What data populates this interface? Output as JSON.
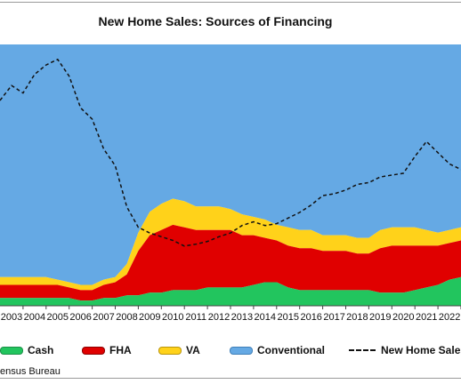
{
  "chart_data": {
    "type": "area",
    "title": "New Home Sales: Sources of Financing",
    "source_note": "ensus Bureau",
    "grid": false,
    "colors": {
      "Cash": "#22c55e",
      "FHA": "#e00000",
      "VA": "#ffd21a",
      "Conventional": "#65a9e4",
      "New Home Sales": "#111111"
    },
    "x_tick_labels": [
      "2003",
      "2004",
      "2005",
      "2006",
      "2007",
      "2008",
      "2009",
      "2010",
      "2011",
      "2012",
      "2013",
      "2014",
      "2015",
      "2016",
      "2017",
      "2018",
      "2019",
      "2020",
      "2021",
      "2022"
    ],
    "x": [
      2002.5,
      2003.0,
      2003.5,
      2004.0,
      2004.5,
      2005.0,
      2005.5,
      2006.0,
      2006.5,
      2007.0,
      2007.5,
      2008.0,
      2008.5,
      2009.0,
      2009.5,
      2010.0,
      2010.5,
      2011.0,
      2011.5,
      2012.0,
      2012.5,
      2013.0,
      2013.5,
      2014.0,
      2014.5,
      2015.0,
      2015.5,
      2016.0,
      2016.5,
      2017.0,
      2017.5,
      2018.0,
      2018.5,
      2019.0,
      2019.5,
      2020.0,
      2020.5,
      2021.0,
      2021.5,
      2022.0,
      2022.5
    ],
    "stack_shares_note": "cumulative percent of sales",
    "series": [
      {
        "name": "Cash",
        "values": [
          3,
          3,
          3,
          3,
          3,
          3,
          3,
          2,
          2,
          3,
          3,
          4,
          4,
          5,
          5,
          6,
          6,
          6,
          7,
          7,
          7,
          7,
          8,
          9,
          9,
          7,
          6,
          6,
          6,
          6,
          6,
          6,
          6,
          5,
          5,
          5,
          6,
          7,
          8,
          10,
          11
        ]
      },
      {
        "name": "FHA",
        "values": [
          5,
          5,
          5,
          5,
          5,
          5,
          4,
          4,
          4,
          5,
          6,
          8,
          17,
          22,
          24,
          25,
          24,
          23,
          22,
          22,
          22,
          20,
          19,
          17,
          16,
          16,
          16,
          16,
          15,
          15,
          15,
          14,
          14,
          17,
          18,
          18,
          17,
          16,
          15,
          14,
          14
        ]
      },
      {
        "name": "VA",
        "values": [
          3,
          3,
          3,
          3,
          3,
          2,
          2,
          2,
          2,
          2,
          2,
          4,
          7,
          9,
          10,
          10,
          10,
          9,
          9,
          9,
          8,
          8,
          7,
          7,
          6,
          7,
          7,
          7,
          6,
          6,
          6,
          6,
          6,
          7,
          7,
          7,
          7,
          6,
          5,
          5,
          5
        ]
      },
      {
        "name": "Conventional",
        "values": [
          89,
          89,
          89,
          89,
          89,
          90,
          91,
          92,
          92,
          90,
          89,
          84,
          72,
          64,
          61,
          59,
          60,
          62,
          62,
          62,
          63,
          65,
          66,
          67,
          69,
          70,
          71,
          71,
          73,
          73,
          73,
          74,
          74,
          71,
          70,
          70,
          70,
          71,
          72,
          71,
          70
        ]
      },
      {
        "name": "New Home Sales",
        "values": [
          1100,
          1180,
          1140,
          1240,
          1290,
          1320,
          1230,
          1060,
          1000,
          840,
          750,
          530,
          420,
          390,
          370,
          350,
          320,
          330,
          345,
          370,
          390,
          430,
          450,
          430,
          440,
          470,
          500,
          540,
          590,
          600,
          620,
          650,
          660,
          690,
          700,
          710,
          800,
          880,
          820,
          760,
          730
        ]
      }
    ],
    "secondary_axis_note": "New Home Sales plotted as line (thousands, annual rate)"
  },
  "legend": [
    {
      "label": "Cash"
    },
    {
      "label": "FHA"
    },
    {
      "label": "VA"
    },
    {
      "label": "Conventional"
    },
    {
      "label": "New Home Sales"
    }
  ]
}
